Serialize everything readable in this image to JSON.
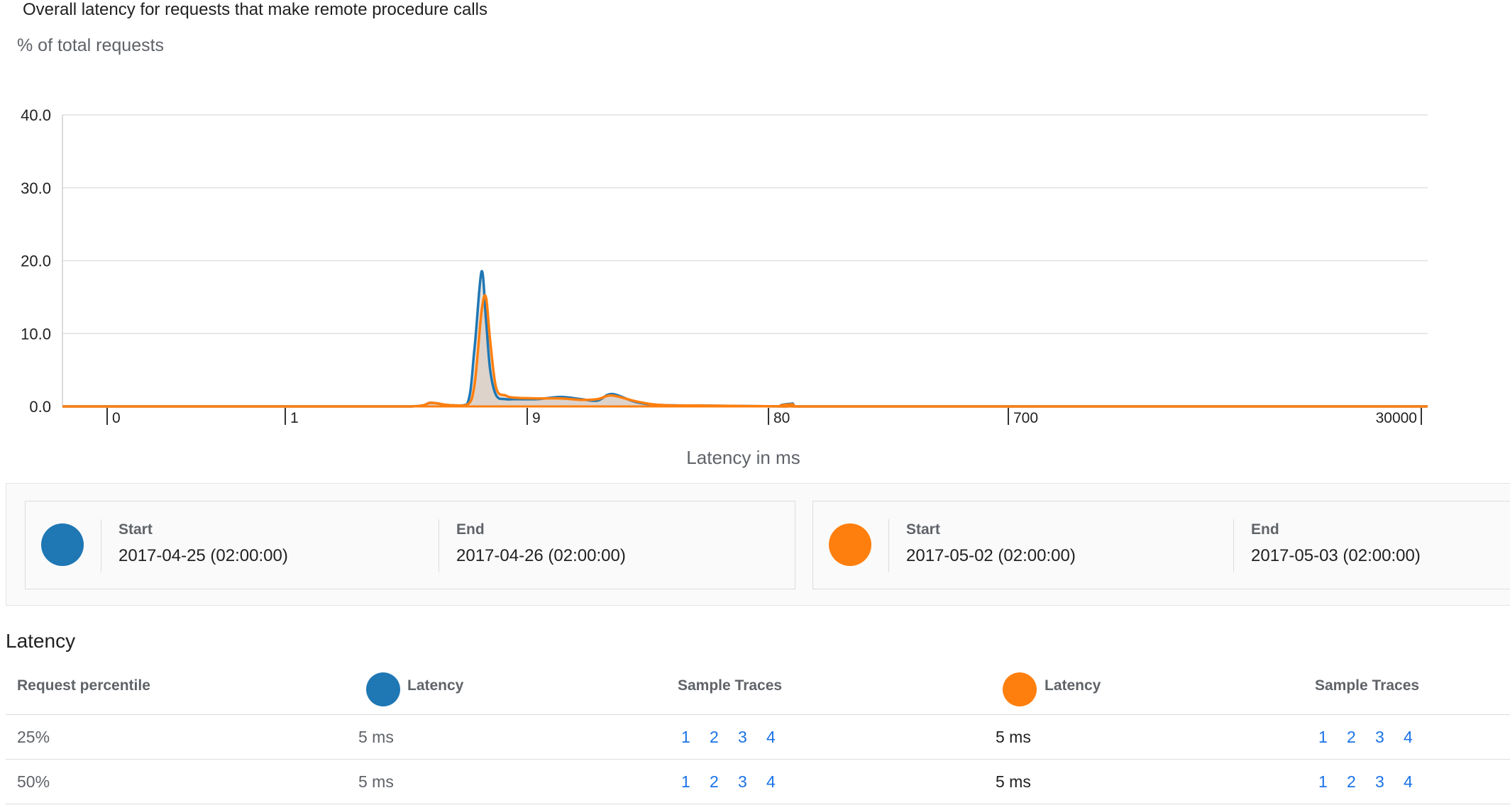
{
  "chart": {
    "title": "Overall latency for requests that make remote procedure calls",
    "y_unit": "% of total requests",
    "x_title": "Latency in ms",
    "colors": {
      "series_a": "#1f77b4",
      "series_b": "#ff7f0e",
      "fill": "#d5c8be",
      "grid": "#e0e0e0",
      "axis": "#333333"
    }
  },
  "chart_data": {
    "type": "line",
    "x_scale": "log",
    "xlim": [
      0.1,
      30000
    ],
    "ylim": [
      0,
      40
    ],
    "y_ticks": [
      "0.0",
      "10.0",
      "20.0",
      "30.0",
      "40.0"
    ],
    "x_ticks": [
      "0",
      "1",
      "9",
      "80",
      "700",
      "30000"
    ],
    "grid": true,
    "series": [
      {
        "x": [
          0.1,
          1,
          2.5,
          3,
          3.5,
          4.2,
          4.5,
          4.8,
          5.0,
          5.2,
          5.5,
          6.0,
          6.5,
          8,
          10,
          12,
          14,
          16,
          20,
          25,
          40,
          80,
          85,
          90,
          700,
          30000
        ],
        "y": [
          0,
          0,
          0,
          0.5,
          0.2,
          0.3,
          8,
          18.5,
          12,
          5,
          1.5,
          1,
          1,
          1,
          1.3,
          1,
          0.8,
          1.7,
          0.6,
          0.2,
          0.1,
          0,
          0.4,
          0,
          0,
          0
        ]
      },
      {
        "x": [
          0.1,
          1,
          2.5,
          3,
          3.5,
          4.2,
          4.5,
          4.8,
          5.0,
          5.2,
          5.5,
          6.0,
          6.5,
          8,
          10,
          12,
          14,
          16,
          20,
          25,
          40,
          80,
          85,
          90,
          700,
          30000
        ],
        "y": [
          0,
          0,
          0,
          0.5,
          0.2,
          0.2,
          3,
          13,
          15,
          9,
          2.5,
          1.5,
          1.2,
          1.1,
          1.1,
          0.9,
          1.0,
          1.5,
          0.7,
          0.2,
          0.1,
          0,
          0.3,
          0,
          0,
          0
        ]
      }
    ]
  },
  "ranges": [
    {
      "color": "#1f77b4",
      "start_label": "Start",
      "start": "2017-04-25 (02:00:00)",
      "end_label": "End",
      "end": "2017-04-26 (02:00:00)"
    },
    {
      "color": "#ff7f0e",
      "start_label": "Start",
      "start": "2017-05-02 (02:00:00)",
      "end_label": "End",
      "end": "2017-05-03 (02:00:00)"
    }
  ],
  "latency": {
    "heading": "Latency",
    "headers": {
      "percentile": "Request percentile",
      "latency_a": "Latency",
      "traces_a": "Sample Traces",
      "latency_b": "Latency",
      "traces_b": "Sample Traces"
    },
    "rows": [
      {
        "percentile": "25%",
        "latency_a": "5 ms",
        "traces_a": [
          "1",
          "2",
          "3",
          "4"
        ],
        "latency_b": "5 ms",
        "traces_b": [
          "1",
          "2",
          "3",
          "4"
        ]
      },
      {
        "percentile": "50%",
        "latency_a": "5 ms",
        "traces_a": [
          "1",
          "2",
          "3",
          "4"
        ],
        "latency_b": "5 ms",
        "traces_b": [
          "1",
          "2",
          "3",
          "4"
        ]
      }
    ]
  }
}
